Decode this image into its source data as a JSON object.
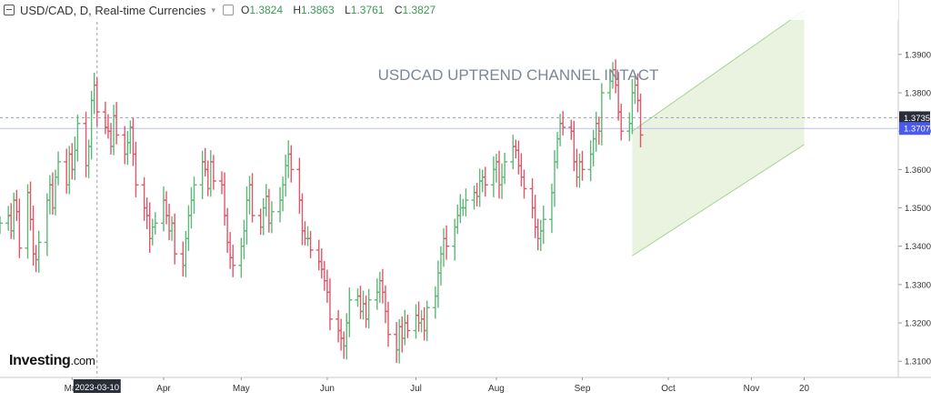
{
  "header": {
    "title": "USD/CAD, D, Real-time Currencies",
    "ohlc": [
      {
        "k": "O",
        "v": "1.3824"
      },
      {
        "k": "H",
        "v": "1.3863"
      },
      {
        "k": "L",
        "v": "1.3761"
      },
      {
        "k": "C",
        "v": "1.3827"
      }
    ]
  },
  "logo": {
    "brand": "Investing",
    "suffix": ".com"
  },
  "colors": {
    "up": "#5fb878",
    "down": "#e0566a",
    "channel_fill": "#e3f0d8",
    "channel_line": "#a6d38f",
    "price_tag": "#4a5af0",
    "crosshair_tag": "#2a2e39"
  },
  "chart_data": {
    "type": "ohlc",
    "title": "USDCAD UPTREND CHANNEL INTACT",
    "y_ticks": [
      "1.3100",
      "1.3200",
      "1.3300",
      "1.3400",
      "1.3500",
      "1.3600",
      "1.3700",
      "1.3800",
      "1.3900"
    ],
    "x_ticks": [
      "Mar",
      "Apr",
      "May",
      "Jun",
      "Jul",
      "Aug",
      "Sep",
      "Oct",
      "Nov",
      "20"
    ],
    "ylim": [
      1.3065,
      1.3985
    ],
    "current_price": {
      "value": 1.3707,
      "label": "1.3707"
    },
    "crosshair": {
      "price": 1.3735,
      "price_label": "1.3735",
      "date_label": "2023-03-10"
    },
    "channel": {
      "lower": [
        [
          "2023-09-19",
          1.3375
        ],
        [
          "2023-11-20",
          1.3665
        ]
      ],
      "upper": [
        [
          "2023-09-19",
          1.37
        ],
        [
          "2023-11-20",
          1.4015
        ]
      ]
    },
    "closes": [
      1.346,
      1.348,
      1.344,
      1.352,
      1.349,
      1.3395,
      1.354,
      1.347,
      1.338,
      1.3365,
      1.341,
      1.352,
      1.356,
      1.35,
      1.358,
      1.362,
      1.356,
      1.364,
      1.36,
      1.365,
      1.372,
      1.361,
      1.366,
      1.378,
      1.382,
      1.375,
      1.371,
      1.37,
      1.366,
      1.374,
      1.369,
      1.364,
      1.367,
      1.371,
      1.364,
      1.356,
      1.35,
      1.348,
      1.342,
      1.345,
      1.346,
      1.352,
      1.348,
      1.344,
      1.346,
      1.338,
      1.335,
      1.342,
      1.348,
      1.352,
      1.356,
      1.362,
      1.36,
      1.355,
      1.362,
      1.357,
      1.356,
      1.348,
      1.341,
      1.337,
      1.335,
      1.34,
      1.344,
      1.352,
      1.356,
      1.348,
      1.345,
      1.35,
      1.353,
      1.346,
      1.349,
      1.352,
      1.356,
      1.361,
      1.364,
      1.36,
      1.352,
      1.344,
      1.342,
      1.342,
      1.339,
      1.336,
      1.334,
      1.331,
      1.328,
      1.321,
      1.318,
      1.316,
      1.314,
      1.32,
      1.326,
      1.327,
      1.323,
      1.325,
      1.321,
      1.326,
      1.328,
      1.331,
      1.328,
      1.323,
      1.317,
      1.313,
      1.319,
      1.316,
      1.32,
      1.318,
      1.322,
      1.32,
      1.321,
      1.318,
      1.324,
      1.327,
      1.333,
      1.338,
      1.342,
      1.34,
      1.345,
      1.348,
      1.35,
      1.35,
      1.352,
      1.354,
      1.353,
      1.357,
      1.358,
      1.356,
      1.36,
      1.362,
      1.356,
      1.358,
      1.362,
      1.366,
      1.365,
      1.361,
      1.358,
      1.355,
      1.35,
      1.345,
      1.342,
      1.344,
      1.347,
      1.354,
      1.362,
      1.368,
      1.372,
      1.371,
      1.37,
      1.362,
      1.358,
      1.362,
      1.36,
      1.364,
      1.368,
      1.372,
      1.37,
      1.38,
      1.383,
      1.386,
      1.382,
      1.375,
      1.37,
      1.372,
      1.38,
      1.382,
      1.378,
      1.369
    ]
  }
}
